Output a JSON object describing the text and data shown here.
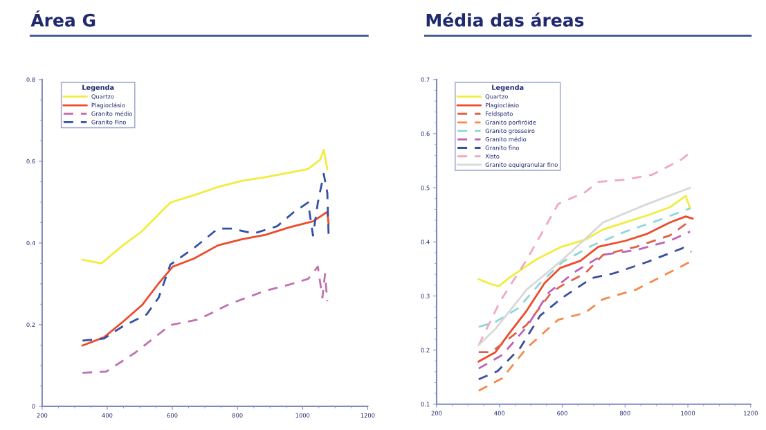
{
  "chart_data": [
    {
      "type": "line",
      "title": "Área G",
      "legend_title": "Legenda",
      "legend": "top left",
      "grid": false,
      "xlim": [
        200,
        1200
      ],
      "xticks": [
        200,
        400,
        600,
        800,
        1000,
        1200
      ],
      "ylim": [
        0,
        0.8
      ],
      "yticks": [
        0,
        0.2,
        0.4,
        0.6,
        0.8
      ],
      "series": [
        {
          "name": "Quartzo",
          "color": "#f2ec3c",
          "line_style": "solid",
          "x": [
            324,
            382,
            448,
            507,
            594,
            667,
            740,
            813,
            886,
            959,
            1017,
            1054,
            1065,
            1076
          ],
          "values": [
            0.359,
            0.35,
            0.394,
            0.429,
            0.499,
            0.517,
            0.537,
            0.552,
            0.561,
            0.572,
            0.581,
            0.604,
            0.628,
            0.581
          ]
        },
        {
          "name": "Plagioclásio",
          "color": "#ee4a2a",
          "line_style": "solid",
          "x": [
            324,
            390,
            448,
            507,
            558,
            601,
            667,
            740,
            813,
            886,
            959,
            1032,
            1076,
            1080
          ],
          "values": [
            0.149,
            0.169,
            0.207,
            0.248,
            0.301,
            0.342,
            0.362,
            0.394,
            0.409,
            0.42,
            0.438,
            0.453,
            0.476,
            0.447
          ]
        },
        {
          "name": "Granito médio",
          "color": "#c070b0",
          "line_style": "dashed",
          "x": [
            324,
            397,
            485,
            594,
            681,
            777,
            886,
            959,
            1017,
            1047,
            1061,
            1069,
            1076
          ],
          "values": [
            0.082,
            0.085,
            0.131,
            0.199,
            0.213,
            0.251,
            0.283,
            0.298,
            0.312,
            0.342,
            0.266,
            0.324,
            0.257
          ]
        },
        {
          "name": "Granito Fino",
          "color": "#3050a8",
          "line_style": "dashed",
          "x": [
            324,
            390,
            448,
            521,
            558,
            594,
            667,
            740,
            784,
            850,
            922,
            974,
            1017,
            1032,
            1047,
            1065,
            1076,
            1080
          ],
          "values": [
            0.161,
            0.166,
            0.196,
            0.225,
            0.266,
            0.347,
            0.388,
            0.435,
            0.435,
            0.423,
            0.441,
            0.476,
            0.499,
            0.418,
            0.499,
            0.569,
            0.523,
            0.418
          ]
        }
      ]
    },
    {
      "type": "line",
      "title": "Média das áreas",
      "legend_title": "Legenda",
      "legend": "top left",
      "grid": false,
      "xlim": [
        200,
        1200
      ],
      "xticks": [
        200,
        400,
        600,
        800,
        1000,
        1200
      ],
      "ylim": [
        0.1,
        0.7
      ],
      "yticks": [
        0.1,
        0.2,
        0.3,
        0.4,
        0.5,
        0.6,
        0.7
      ],
      "series": [
        {
          "name": "Quartzo",
          "color": "#f2ec3c",
          "line_style": "solid",
          "x": [
            334,
            373,
            398,
            430,
            516,
            598,
            673,
            730,
            801,
            871,
            943,
            993,
            1007
          ],
          "values": [
            0.331,
            0.322,
            0.318,
            0.333,
            0.367,
            0.391,
            0.404,
            0.423,
            0.436,
            0.449,
            0.464,
            0.485,
            0.462
          ]
        },
        {
          "name": "Plagioclásio",
          "color": "#ee4a2a",
          "line_style": "solid",
          "x": [
            334,
            387,
            430,
            487,
            544,
            594,
            658,
            715,
            801,
            871,
            943,
            993,
            1015
          ],
          "values": [
            0.179,
            0.196,
            0.23,
            0.273,
            0.324,
            0.352,
            0.365,
            0.391,
            0.402,
            0.415,
            0.436,
            0.447,
            0.443
          ]
        },
        {
          "name": "Feldspato",
          "color": "#e0604a",
          "line_style": "dashed",
          "x": [
            334,
            373,
            430,
            487,
            566,
            601,
            673,
            730,
            836,
            943,
            1000
          ],
          "values": [
            0.196,
            0.196,
            0.221,
            0.247,
            0.307,
            0.32,
            0.342,
            0.376,
            0.391,
            0.412,
            0.436
          ]
        },
        {
          "name": "Granito porfiróide",
          "color": "#f5894a",
          "line_style": "dashed",
          "x": [
            334,
            409,
            487,
            587,
            673,
            730,
            836,
            943,
            1007
          ],
          "values": [
            0.125,
            0.148,
            0.204,
            0.256,
            0.269,
            0.294,
            0.312,
            0.344,
            0.363
          ]
        },
        {
          "name": "Granito grosseiro",
          "color": "#8fd6d8",
          "line_style": "dashed",
          "x": [
            334,
            387,
            459,
            530,
            601,
            694,
            801,
            907,
            1007
          ],
          "values": [
            0.243,
            0.252,
            0.277,
            0.324,
            0.363,
            0.393,
            0.419,
            0.44,
            0.462
          ]
        },
        {
          "name": "Granito médio",
          "color": "#c060b8",
          "line_style": "dashed",
          "x": [
            334,
            409,
            487,
            558,
            644,
            730,
            836,
            943,
            1007
          ],
          "values": [
            0.166,
            0.191,
            0.243,
            0.307,
            0.346,
            0.376,
            0.385,
            0.402,
            0.419
          ]
        },
        {
          "name": "Granito fino",
          "color": "#3a4ea0",
          "line_style": "dashed",
          "x": [
            334,
            394,
            466,
            530,
            601,
            694,
            765,
            871,
            986,
            1011
          ],
          "values": [
            0.146,
            0.161,
            0.204,
            0.264,
            0.297,
            0.333,
            0.342,
            0.363,
            0.389,
            0.382
          ]
        },
        {
          "name": "Xisto",
          "color": "#f0a8c0",
          "line_style": "dashed",
          "x": [
            334,
            402,
            487,
            587,
            673,
            715,
            801,
            886,
            979,
            1007
          ],
          "values": [
            0.209,
            0.29,
            0.367,
            0.47,
            0.492,
            0.511,
            0.515,
            0.524,
            0.552,
            0.565
          ]
        },
        {
          "name": "Granito equigranular fino",
          "color": "#d8d8d8",
          "line_style": "solid",
          "x": [
            334,
            387,
            487,
            601,
            730,
            871,
            1007
          ],
          "values": [
            0.209,
            0.239,
            0.312,
            0.367,
            0.436,
            0.47,
            0.5
          ]
        }
      ]
    }
  ]
}
